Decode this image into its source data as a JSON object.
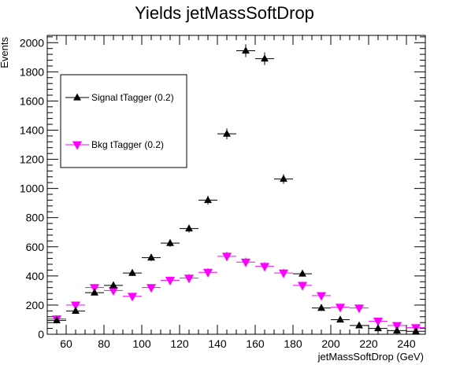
{
  "chart_data": {
    "type": "scatter",
    "title": "Yields jetMassSoftDrop",
    "xlabel": "jetMassSoftDrop (GeV)",
    "ylabel": "Events",
    "xlim": [
      50,
      250
    ],
    "ylim": [
      0,
      2050
    ],
    "x_ticks": [
      60,
      80,
      100,
      120,
      140,
      160,
      180,
      200,
      220,
      240
    ],
    "y_ticks": [
      0,
      200,
      400,
      600,
      800,
      1000,
      1200,
      1400,
      1600,
      1800,
      2000
    ],
    "bin_width": 10,
    "legend_position": "top-left",
    "grid": false,
    "series": [
      {
        "name": "Signal tTagger (0.2)",
        "color": "#000000",
        "marker": "triangle-up",
        "x": [
          55,
          65,
          75,
          85,
          95,
          105,
          115,
          125,
          135,
          145,
          155,
          165,
          175,
          185,
          195,
          205,
          215,
          225,
          235,
          245
        ],
        "values": [
          95,
          160,
          285,
          335,
          420,
          525,
          625,
          725,
          920,
          1375,
          1945,
          1890,
          1065,
          415,
          180,
          100,
          60,
          40,
          25,
          20
        ]
      },
      {
        "name": "Bkg tTagger (0.2)",
        "color": "#ff00ff",
        "marker": "triangle-down",
        "x": [
          55,
          65,
          75,
          85,
          95,
          105,
          115,
          125,
          135,
          145,
          155,
          165,
          175,
          185,
          195,
          205,
          215,
          225,
          235,
          245
        ],
        "values": [
          105,
          200,
          320,
          300,
          260,
          320,
          370,
          385,
          425,
          535,
          495,
          465,
          420,
          335,
          265,
          185,
          180,
          90,
          60,
          45
        ]
      }
    ]
  }
}
